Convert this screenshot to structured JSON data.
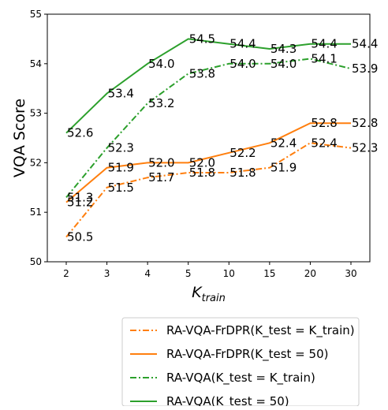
{
  "chart_data": {
    "type": "line",
    "xlabel": "K",
    "xlabel_sub": "train",
    "ylabel": "VQA Score",
    "categories": [
      "2",
      "3",
      "4",
      "5",
      "10",
      "15",
      "20",
      "30"
    ],
    "ylim": [
      50,
      55
    ],
    "yticks": [
      "50",
      "51",
      "52",
      "53",
      "54",
      "55"
    ],
    "grid": false,
    "legend_position": "below",
    "series": [
      {
        "name": "RA-VQA-FrDPR",
        "name_suffix": "(K_test = K_train)",
        "color": "#ff7f0e",
        "style": "dashdot",
        "values": [
          50.5,
          51.5,
          51.7,
          51.8,
          51.8,
          51.9,
          52.4,
          52.3
        ],
        "labels": [
          "50.5",
          "51.5",
          "51.7",
          "51.8",
          "51.8",
          "51.9",
          "52.4",
          "52.3"
        ]
      },
      {
        "name": "RA-VQA-FrDPR",
        "name_suffix": "(K_test = 50)",
        "color": "#ff7f0e",
        "style": "solid",
        "values": [
          51.2,
          51.9,
          52.0,
          52.0,
          52.2,
          52.4,
          52.8,
          52.8
        ],
        "labels": [
          "51.2",
          "51.9",
          "52.0",
          "52.0",
          "52.2",
          "52.4",
          "52.8",
          "52.8"
        ]
      },
      {
        "name": "RA-VQA",
        "name_suffix": "(K_test = K_train)",
        "color": "#2ca02c",
        "style": "dashdot",
        "values": [
          51.3,
          52.3,
          53.2,
          53.8,
          54.0,
          54.0,
          54.1,
          53.9
        ],
        "labels": [
          "51.3",
          "52.3",
          "53.2",
          "53.8",
          "54.0",
          "54.0",
          "54.1",
          "53.9"
        ]
      },
      {
        "name": "RA-VQA",
        "name_suffix": "(K_test = 50)",
        "color": "#2ca02c",
        "style": "solid",
        "values": [
          52.6,
          53.4,
          54.0,
          54.5,
          54.4,
          54.3,
          54.4,
          54.4
        ],
        "labels": [
          "52.6",
          "53.4",
          "54.0",
          "54.5",
          "54.4",
          "54.3",
          "54.4",
          "54.4"
        ]
      }
    ]
  }
}
